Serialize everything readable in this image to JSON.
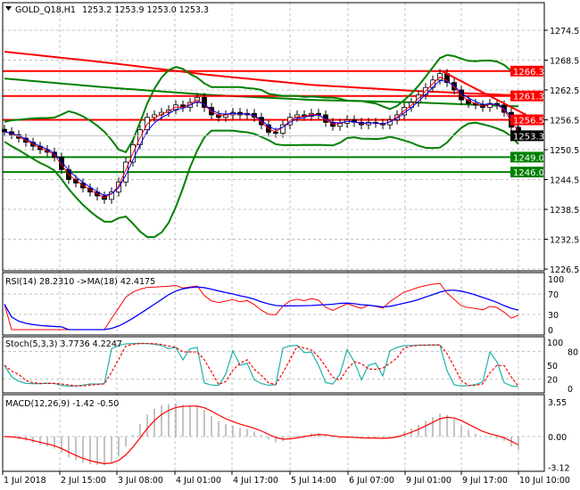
{
  "header": {
    "symbol": "GOLD_Q18,H1",
    "ohlc": "1253.2 1253.9 1253.0 1253.3"
  },
  "indicators": {
    "rsi": "RSI(14) 28.2310  ->MA(18) 42.4175",
    "stoch": "Stoch(5,3,3) 3.7736 4.2247",
    "macd": "MACD(12,26,9) -1.42 -0.50"
  },
  "colors": {
    "resistance": "#ff0000",
    "support": "#008000",
    "current": "#000000",
    "bollinger": "#008000",
    "fast_ma": "#ff0000",
    "slow_ma": "#0000ff",
    "stoch_main": "#20b2aa",
    "grid": "#c0c0c0"
  },
  "chart_data": {
    "type": "candlestick",
    "title": "GOLD_Q18,H1",
    "price_axis": {
      "ticks": [
        "1274.5",
        "1268.5",
        "1262.5",
        "1256.5",
        "1250.5",
        "1244.5",
        "1238.5",
        "1232.5",
        "1226.5"
      ],
      "range": [
        1226.5,
        1277.5
      ]
    },
    "time_axis": {
      "ticks": [
        "1 Jul 2018",
        "2 Jul 15:00",
        "3 Jul 08:00",
        "4 Jul 01:00",
        "4 Jul 17:00",
        "5 Jul 14:00",
        "6 Jul 07:00",
        "9 Jul 01:00",
        "9 Jul 17:00",
        "10 Jul 10:00"
      ]
    },
    "closes": [
      1254.1,
      1253.5,
      1252.8,
      1252,
      1251.2,
      1250.5,
      1250,
      1249,
      1246.5,
      1244.5,
      1243.8,
      1242.8,
      1242,
      1241.2,
      1240.5,
      1242,
      1244,
      1248,
      1251.5,
      1254.5,
      1257,
      1257.5,
      1258,
      1258.5,
      1259.5,
      1259,
      1260,
      1261,
      1259,
      1257.5,
      1257,
      1257.5,
      1258,
      1257.5,
      1257.8,
      1257,
      1255.5,
      1254,
      1253.8,
      1255.5,
      1257,
      1257.5,
      1257.2,
      1257.8,
      1257.5,
      1256,
      1255.2,
      1255.8,
      1256.5,
      1256,
      1255.5,
      1256,
      1255.8,
      1255.5,
      1256.5,
      1257.5,
      1259,
      1260,
      1261.5,
      1263,
      1264.5,
      1265.8,
      1264,
      1262.5,
      1260.5,
      1259.8,
      1259.5,
      1259,
      1259.8,
      1259.5,
      1258,
      1255,
      1253.3
    ],
    "levels": [
      {
        "price": "1266.3",
        "kind": "resistance"
      },
      {
        "price": "1261.3",
        "kind": "resistance"
      },
      {
        "price": "1256.5",
        "kind": "resistance"
      },
      {
        "price": "1249.0",
        "kind": "support"
      },
      {
        "price": "1246.0",
        "kind": "support"
      }
    ],
    "current_price": "1253.3",
    "long_ma_red": [
      1270.2,
      1268.0,
      1265.5,
      1263.5,
      1262.3,
      1261.4
    ],
    "long_ma_green": [
      1264.8,
      1263.0,
      1261.5,
      1260.5,
      1260.0,
      1259.2
    ],
    "trendline": {
      "from": 1266.3,
      "to": 1255.6
    },
    "rsi": {
      "name": "RSI(14)",
      "value": 28.231,
      "ma": 42.4175,
      "levels": [
        "100",
        "70",
        "30",
        "0"
      ]
    },
    "stoch": {
      "name": "Stoch(5,3,3)",
      "main": 3.7736,
      "signal": 4.2247,
      "levels": [
        "100",
        "80",
        "50",
        "20",
        "0"
      ]
    },
    "macd": {
      "name": "MACD(12,26,9)",
      "main": -1.42,
      "signal": -0.5,
      "levels": [
        "3.55",
        "0.00",
        "-3.12"
      ]
    }
  }
}
